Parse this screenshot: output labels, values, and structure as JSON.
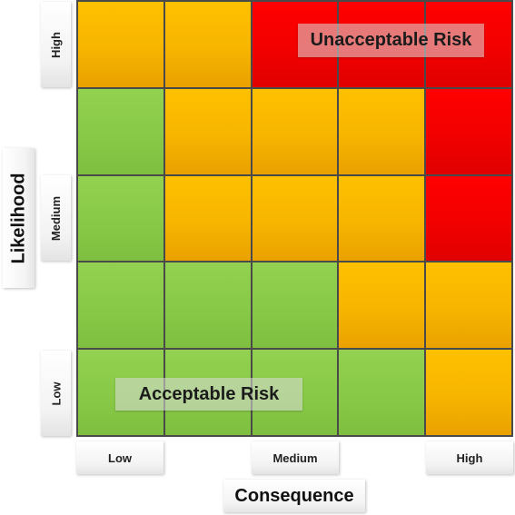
{
  "matrix": {
    "rows": [
      [
        "amber",
        "amber",
        "red",
        "red",
        "red"
      ],
      [
        "green",
        "amber",
        "amber",
        "amber",
        "red"
      ],
      [
        "green",
        "amber",
        "amber",
        "amber",
        "red"
      ],
      [
        "green",
        "green",
        "green",
        "amber",
        "amber"
      ],
      [
        "green",
        "green",
        "green",
        "green",
        "amber"
      ]
    ],
    "colors": {
      "green": "#8dcc4a",
      "amber": "#ffc000",
      "red": "#ff0000"
    }
  },
  "zones": {
    "unacceptable": "Unacceptable Risk",
    "acceptable": "Acceptable Risk"
  },
  "y_axis": {
    "title": "Likelihood",
    "ticks": {
      "high": "High",
      "medium": "Medium",
      "low": "Low"
    }
  },
  "x_axis": {
    "title": "Consequence",
    "ticks": {
      "low": "Low",
      "medium": "Medium",
      "high": "High"
    }
  }
}
